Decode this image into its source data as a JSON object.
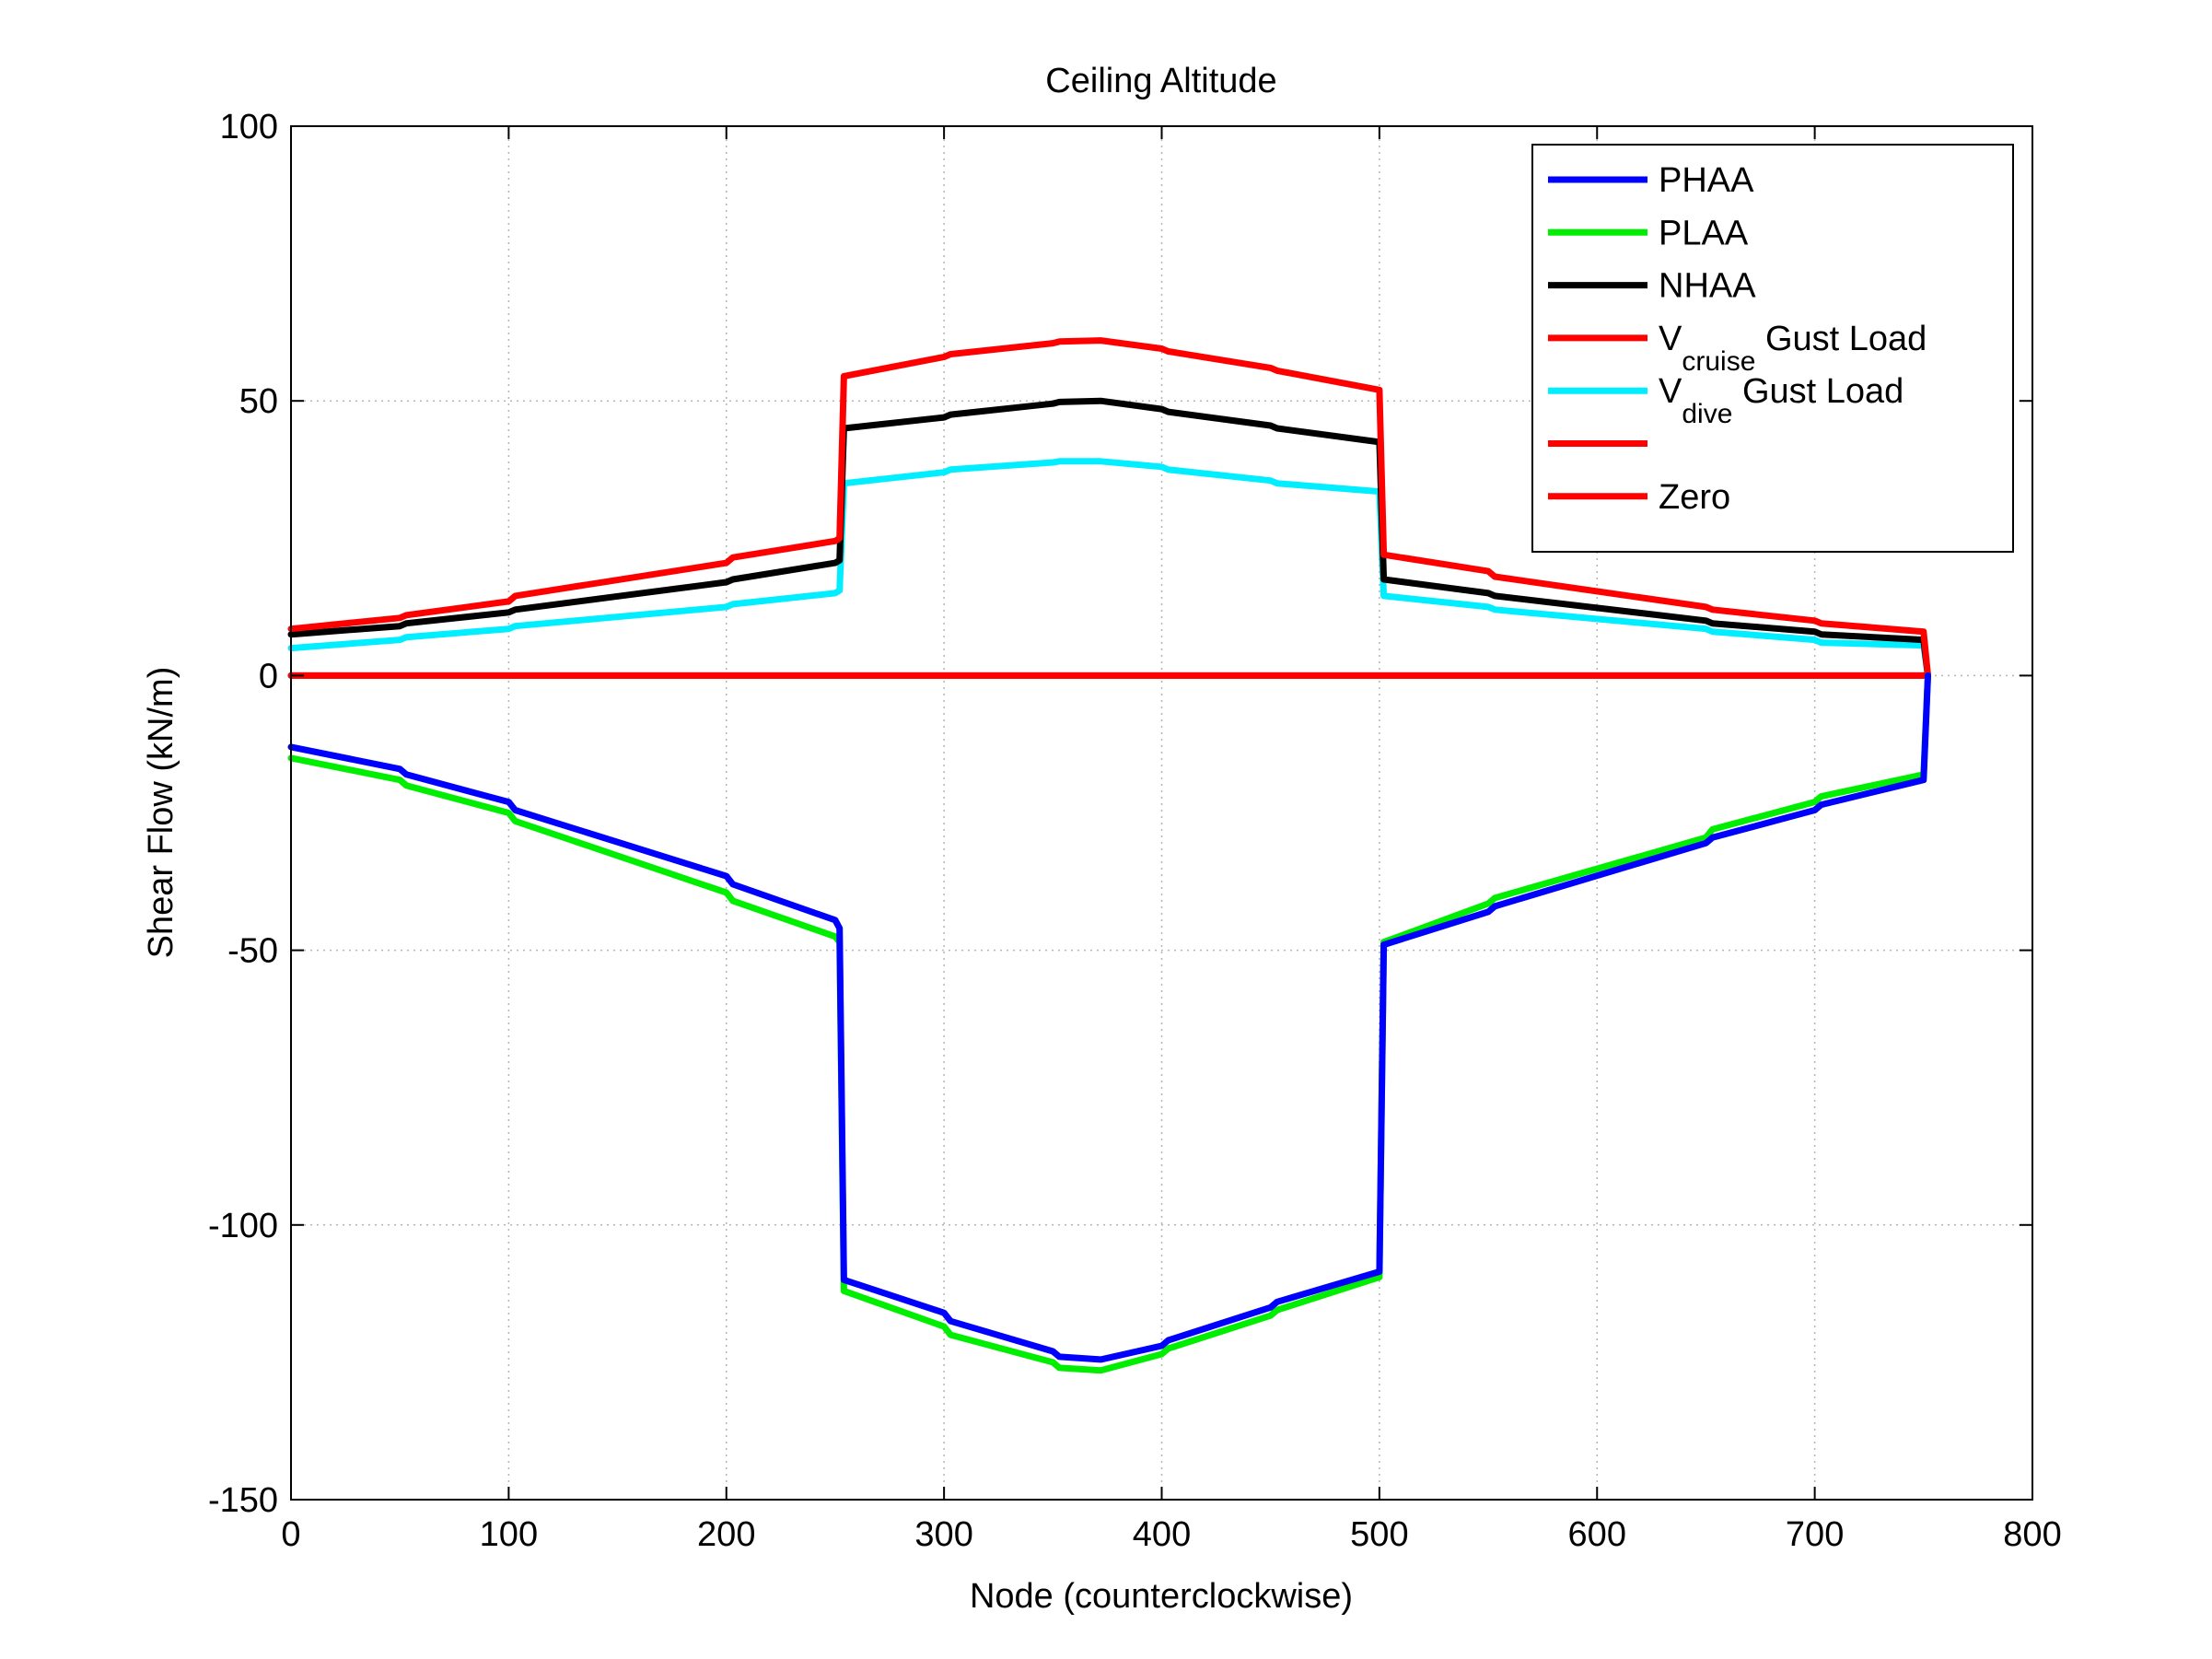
{
  "chart_data": {
    "type": "line",
    "title": "Ceiling Altitude",
    "xlabel": "Node (counterclockwise)",
    "ylabel": "Shear Flow (kN/m)",
    "xlim": [
      0,
      800
    ],
    "ylim": [
      -150,
      100
    ],
    "xticks": [
      "0",
      "100",
      "200",
      "300",
      "400",
      "500",
      "600",
      "700",
      "800"
    ],
    "yticks": [
      "100",
      "50",
      "0",
      "-50",
      "-100",
      "-150"
    ],
    "grid": true,
    "legend_position": "top-right",
    "series": [
      {
        "name": "PHAA",
        "color": "#0000ff",
        "x": [
          0,
          50,
          53,
          100,
          103,
          200,
          203,
          250,
          252,
          254,
          300,
          303,
          350,
          353,
          372,
          400,
          403,
          450,
          453,
          500,
          502,
          550,
          553,
          650,
          653,
          700,
          703,
          750,
          752
        ],
        "y": [
          -13,
          -17,
          -18,
          -23,
          -24.5,
          -36.5,
          -38,
          -44.5,
          -46,
          -110,
          -116,
          -117.5,
          -123,
          -124,
          -124.5,
          -122,
          -121,
          -115,
          -114,
          -108.5,
          -49,
          -43,
          -42,
          -30.5,
          -29.5,
          -24.5,
          -23.5,
          -19,
          0
        ]
      },
      {
        "name": "PLAA",
        "color": "#00ee00",
        "x": [
          0,
          50,
          53,
          100,
          103,
          200,
          203,
          250,
          252,
          254,
          300,
          303,
          350,
          353,
          372,
          400,
          403,
          450,
          453,
          500,
          502,
          550,
          553,
          650,
          653,
          700,
          703,
          750,
          752
        ],
        "y": [
          -15,
          -19,
          -20,
          -25,
          -26.5,
          -39.5,
          -41,
          -47.5,
          -48.5,
          -112,
          -118.5,
          -120,
          -125,
          -126,
          -126.5,
          -123.5,
          -122.5,
          -116.5,
          -115.5,
          -109.5,
          -48.5,
          -41.5,
          -40.5,
          -29.5,
          -28,
          -23,
          -22,
          -18,
          0
        ]
      },
      {
        "name": "NHAA",
        "color": "#000000",
        "x": [
          0,
          50,
          53,
          100,
          103,
          200,
          203,
          250,
          252,
          254,
          300,
          303,
          350,
          353,
          372,
          400,
          403,
          450,
          453,
          500,
          502,
          550,
          553,
          650,
          653,
          700,
          703,
          750,
          752
        ],
        "y": [
          7.5,
          9,
          9.5,
          11.5,
          12,
          17,
          17.5,
          20.5,
          21,
          45,
          47,
          47.5,
          49.5,
          49.8,
          50,
          48.5,
          48,
          45.5,
          45,
          42.5,
          17.5,
          15,
          14.5,
          10,
          9.5,
          8,
          7.5,
          6.5,
          0
        ]
      },
      {
        "name": "V cruise Gust Load",
        "color": "#ff0000",
        "x": [
          0,
          50,
          53,
          100,
          103,
          200,
          203,
          250,
          252,
          254,
          300,
          303,
          350,
          353,
          372,
          400,
          403,
          450,
          453,
          500,
          502,
          550,
          553,
          650,
          653,
          700,
          703,
          750,
          752
        ],
        "y": [
          8.5,
          10.5,
          11,
          13.5,
          14.5,
          20.5,
          21.5,
          24.5,
          25,
          54.5,
          58,
          58.5,
          60.5,
          60.8,
          61,
          59.5,
          59,
          56,
          55.5,
          52,
          22,
          19,
          18,
          12.5,
          12,
          10,
          9.5,
          8,
          0
        ]
      },
      {
        "name": "V dive Gust Load",
        "color": "#00eeff",
        "x": [
          0,
          50,
          53,
          100,
          103,
          200,
          203,
          250,
          252,
          254,
          300,
          303,
          350,
          353,
          372,
          400,
          403,
          450,
          453,
          500,
          502,
          550,
          553,
          650,
          653,
          700,
          703,
          750,
          752
        ],
        "y": [
          5,
          6.5,
          7,
          8.5,
          9,
          12.5,
          13,
          15,
          15.5,
          35,
          37,
          37.5,
          38.8,
          39,
          39,
          38,
          37.5,
          35.5,
          35,
          33.5,
          14.5,
          12.5,
          12,
          8.5,
          8,
          6.5,
          6,
          5.5,
          0
        ]
      },
      {
        "name": "",
        "color": "#ff0000",
        "x": [
          0,
          752
        ],
        "y": [
          0,
          0
        ]
      },
      {
        "name": "Zero",
        "color": "#ff0000",
        "x": [
          0,
          752
        ],
        "y": [
          0,
          0
        ]
      }
    ],
    "legend": [
      {
        "main": "PHAA",
        "sub": "",
        "tail": ""
      },
      {
        "main": "PLAA",
        "sub": "",
        "tail": ""
      },
      {
        "main": "NHAA",
        "sub": "",
        "tail": ""
      },
      {
        "main": "V",
        "sub": "cruise",
        "tail": " Gust Load"
      },
      {
        "main": "V",
        "sub": "dive",
        "tail": " Gust Load"
      },
      {
        "main": "",
        "sub": "",
        "tail": ""
      },
      {
        "main": "Zero",
        "sub": "",
        "tail": ""
      }
    ]
  }
}
